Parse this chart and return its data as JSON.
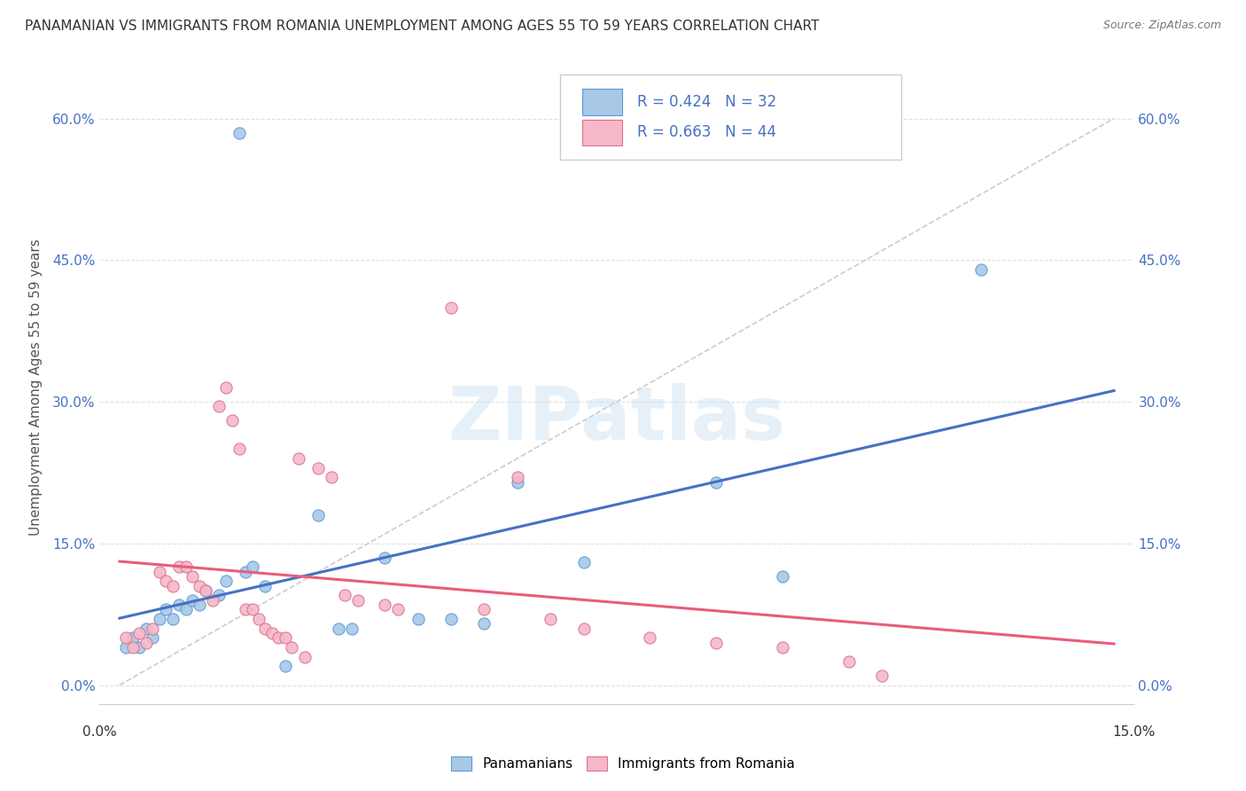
{
  "title": "PANAMANIAN VS IMMIGRANTS FROM ROMANIA UNEMPLOYMENT AMONG AGES 55 TO 59 YEARS CORRELATION CHART",
  "source": "Source: ZipAtlas.com",
  "ylabel": "Unemployment Among Ages 55 to 59 years",
  "watermark": "ZIPatlas",
  "blue_R": 0.424,
  "blue_N": 32,
  "pink_R": 0.663,
  "pink_N": 44,
  "blue_color": "#a8c8e8",
  "pink_color": "#f4b8c8",
  "blue_edge_color": "#5b9bd5",
  "pink_edge_color": "#e07090",
  "blue_line_color": "#4472c4",
  "pink_line_color": "#e85d7a",
  "diagonal_color": "#cccccc",
  "grid_color": "#e0e0e0",
  "blue_pts_x": [
    0.001,
    0.002,
    0.003,
    0.004,
    0.005,
    0.006,
    0.007,
    0.008,
    0.009,
    0.01,
    0.011,
    0.012,
    0.013,
    0.015,
    0.016,
    0.018,
    0.019,
    0.02,
    0.022,
    0.025,
    0.03,
    0.033,
    0.035,
    0.04,
    0.045,
    0.05,
    0.055,
    0.06,
    0.07,
    0.09,
    0.1,
    0.13
  ],
  "blue_pts_y": [
    0.04,
    0.05,
    0.04,
    0.06,
    0.05,
    0.07,
    0.08,
    0.07,
    0.085,
    0.08,
    0.09,
    0.085,
    0.1,
    0.095,
    0.11,
    0.585,
    0.12,
    0.125,
    0.105,
    0.02,
    0.18,
    0.06,
    0.06,
    0.135,
    0.07,
    0.07,
    0.065,
    0.215,
    0.13,
    0.215,
    0.115,
    0.44
  ],
  "pink_pts_x": [
    0.001,
    0.002,
    0.003,
    0.004,
    0.005,
    0.006,
    0.007,
    0.008,
    0.009,
    0.01,
    0.011,
    0.012,
    0.013,
    0.014,
    0.015,
    0.016,
    0.017,
    0.018,
    0.019,
    0.02,
    0.021,
    0.022,
    0.023,
    0.024,
    0.025,
    0.026,
    0.027,
    0.028,
    0.03,
    0.032,
    0.034,
    0.036,
    0.04,
    0.042,
    0.05,
    0.055,
    0.06,
    0.065,
    0.07,
    0.08,
    0.09,
    0.1,
    0.11,
    0.115
  ],
  "pink_pts_y": [
    0.05,
    0.04,
    0.055,
    0.045,
    0.06,
    0.12,
    0.11,
    0.105,
    0.125,
    0.125,
    0.115,
    0.105,
    0.1,
    0.09,
    0.295,
    0.315,
    0.28,
    0.25,
    0.08,
    0.08,
    0.07,
    0.06,
    0.055,
    0.05,
    0.05,
    0.04,
    0.24,
    0.03,
    0.23,
    0.22,
    0.095,
    0.09,
    0.085,
    0.08,
    0.4,
    0.08,
    0.22,
    0.07,
    0.06,
    0.05,
    0.045,
    0.04,
    0.025,
    0.01
  ],
  "xlim": [
    -0.003,
    0.153
  ],
  "ylim": [
    -0.02,
    0.65
  ],
  "ytick_vals": [
    0.0,
    0.15,
    0.3,
    0.45,
    0.6
  ],
  "ytick_labels": [
    "0.0%",
    "15.0%",
    "30.0%",
    "45.0%",
    "60.0%"
  ]
}
